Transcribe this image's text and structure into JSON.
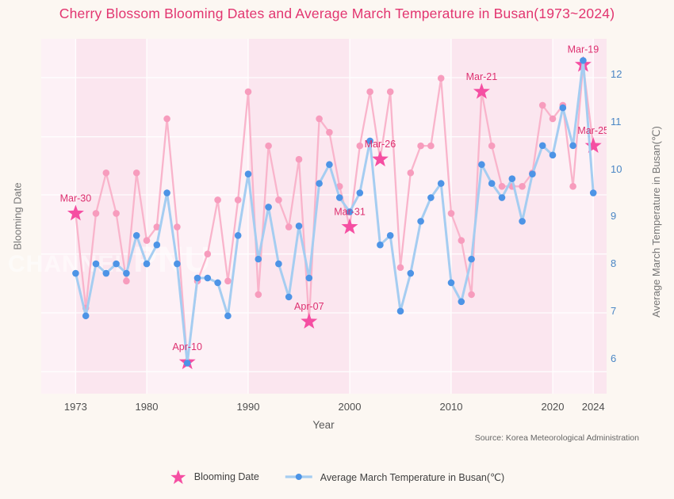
{
  "title": "Cherry Blossom Blooming Dates and Average March Temperature in Busan(1973~2024)",
  "source": "Source: Korea Meteorological Administration",
  "watermark": {
    "part1": "CHANNEL",
    "part2": "PNU"
  },
  "colors": {
    "title": "#e23570",
    "bloom_line": "#f9b4cb",
    "bloom_dot": "#f79cbd",
    "star": "#f54ea2",
    "annotation_text": "#dd3070",
    "temp_line": "#a5cdf1",
    "temp_dot": "#4d94e6",
    "right_tick_text": "#4a86c5",
    "plot_band_pink": "#fbe6ef",
    "plot_band_light": "#fdf1f6",
    "grid": "#ffffff"
  },
  "chart_data": {
    "type": "line",
    "title": "Cherry Blossom Blooming Dates and Average March Temperature in Busan(1973~2024)",
    "x_label": "Year",
    "left_axis_label": "Blooming Date",
    "right_axis_label": "Average March Temperature in Busan(℃)",
    "x_ticks": [
      1973,
      1980,
      1990,
      2000,
      2010,
      2020,
      2024
    ],
    "right_ticks": [
      6,
      7,
      8,
      9,
      10,
      11,
      12
    ],
    "right_axis_range": [
      5.2,
      12.8
    ],
    "grid": true,
    "legend_position": "bottom-center",
    "x": [
      1973,
      1974,
      1975,
      1976,
      1977,
      1978,
      1979,
      1980,
      1981,
      1982,
      1983,
      1984,
      1985,
      1986,
      1987,
      1988,
      1989,
      1990,
      1991,
      1992,
      1993,
      1994,
      1995,
      1996,
      1997,
      1998,
      1999,
      2000,
      2001,
      2002,
      2003,
      2004,
      2005,
      2006,
      2007,
      2008,
      2009,
      2010,
      2011,
      2012,
      2013,
      2014,
      2015,
      2016,
      2017,
      2018,
      2019,
      2020,
      2021,
      2022,
      2023,
      2024
    ],
    "series": [
      {
        "name": "Blooming Date",
        "axis": "left-date",
        "marker": "circle",
        "values": [
          "Mar-30",
          "Apr-06",
          "Mar-30",
          "Mar-27",
          "Mar-30",
          "Apr-04",
          "Mar-27",
          "Apr-01",
          "Mar-31",
          "Mar-23",
          "Mar-31",
          "Apr-10",
          "Apr-04",
          "Apr-02",
          "Mar-29",
          "Apr-04",
          "Mar-29",
          "Mar-21",
          "Apr-05",
          "Mar-25",
          "Mar-29",
          "Mar-31",
          "Mar-26",
          "Apr-07",
          "Mar-23",
          "Mar-24",
          "Mar-28",
          "Mar-31",
          "Mar-25",
          "Mar-21",
          "Mar-26",
          "Mar-21",
          "Apr-03",
          "Mar-27",
          "Mar-25",
          "Mar-25",
          "Mar-20",
          "Mar-30",
          "Apr-01",
          "Apr-05",
          "Mar-21",
          "Mar-25",
          "Mar-28",
          "Mar-28",
          "Mar-28",
          "Mar-27",
          "Mar-22",
          "Mar-23",
          "Mar-22",
          "Mar-28",
          "Mar-19",
          "Mar-25"
        ]
      },
      {
        "name": "Average March Temperature in Busan(℃)",
        "axis": "right-temp-celsius",
        "marker": "circle",
        "values": [
          7.8,
          6.9,
          8.0,
          7.8,
          8.0,
          7.8,
          8.6,
          8.0,
          8.4,
          9.5,
          8.0,
          5.9,
          7.7,
          7.7,
          7.6,
          6.9,
          8.6,
          9.9,
          8.1,
          9.2,
          8.0,
          7.3,
          8.8,
          7.7,
          9.7,
          10.1,
          9.4,
          9.1,
          9.5,
          10.6,
          8.4,
          8.6,
          7.0,
          7.8,
          8.9,
          9.4,
          9.7,
          7.6,
          7.2,
          8.1,
          10.1,
          9.7,
          9.4,
          9.8,
          8.9,
          9.9,
          10.5,
          10.3,
          11.3,
          10.5,
          12.3,
          9.5
        ]
      }
    ],
    "annotations": [
      {
        "year": 1973,
        "label": "Mar-30"
      },
      {
        "year": 1984,
        "label": "Apr-10"
      },
      {
        "year": 1996,
        "label": "Apr-07"
      },
      {
        "year": 2000,
        "label": "Mar-31"
      },
      {
        "year": 2003,
        "label": "Mar-26"
      },
      {
        "year": 2013,
        "label": "Mar-21"
      },
      {
        "year": 2023,
        "label": "Mar-19"
      },
      {
        "year": 2024,
        "label": "Mar-25"
      }
    ]
  }
}
